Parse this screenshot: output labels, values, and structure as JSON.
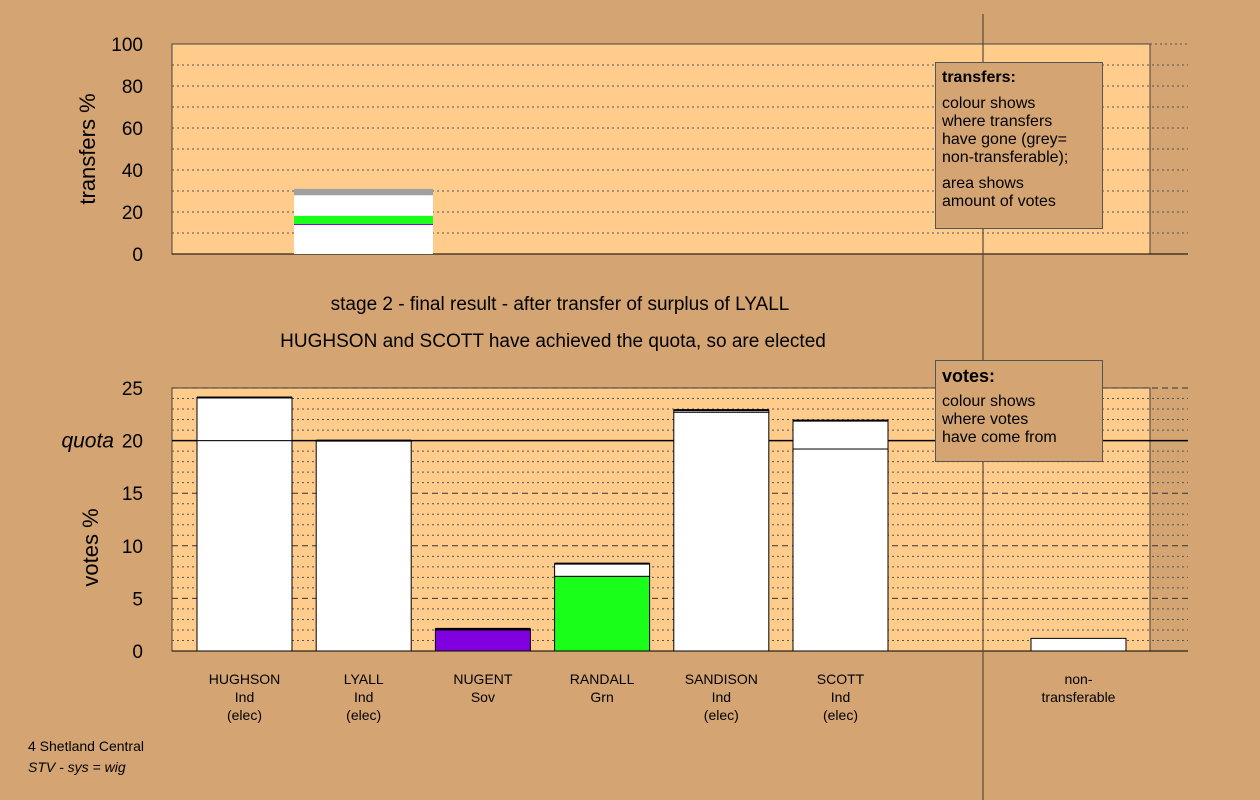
{
  "stage_title": "stage 2 - final result - after transfer of surplus of LYALL",
  "elected_text": "HUGHSON and SCOTT have achieved the quota, so are elected",
  "transfers_legend": {
    "title": "transfers:",
    "lines1": [
      "colour shows",
      "where transfers",
      "have gone (grey=",
      "non-transferable);"
    ],
    "lines2": [
      "area shows",
      "amount of votes"
    ]
  },
  "votes_legend": {
    "title": "votes:",
    "lines": [
      "colour shows",
      "where votes",
      "have come from"
    ]
  },
  "footer": {
    "line1": "4 Shetland Central",
    "line2": "STV - sys = wig"
  },
  "colors": {
    "background": "#d4a472",
    "plot_area": "#ffcc8c",
    "white": "#ffffff",
    "green": "#19ff19",
    "purple": "#8000e0",
    "grey": "#a0a0a0"
  },
  "chart_data": [
    {
      "type": "bar",
      "name": "transfers",
      "ylabel": "transfers %",
      "ylim": [
        0,
        100
      ],
      "yticks": [
        0,
        20,
        40,
        60,
        80,
        100
      ],
      "bar": {
        "candidate": "LYALL",
        "segments": [
          {
            "color": "white",
            "from": 0,
            "to": 14
          },
          {
            "color": "purple",
            "from": 14,
            "to": 14.3
          },
          {
            "color": "green",
            "from": 14.3,
            "to": 18.2
          },
          {
            "color": "white",
            "from": 18.2,
            "to": 28
          },
          {
            "color": "grey",
            "from": 28,
            "to": 31
          }
        ]
      }
    },
    {
      "type": "bar",
      "name": "votes",
      "ylabel": "votes %",
      "ylim": [
        0,
        25
      ],
      "yticks": [
        0,
        5,
        10,
        15,
        20,
        25
      ],
      "quota": 20,
      "quota_label": "quota",
      "categories": [
        {
          "name": "HUGHSON",
          "party": "Ind",
          "status": "(elec)",
          "total": 24.1,
          "segments": [
            {
              "color": "white",
              "from": 0,
              "to": 20
            },
            {
              "color": "white",
              "from": 20,
              "to": 24.1
            }
          ]
        },
        {
          "name": "LYALL",
          "party": "Ind",
          "status": "(elec)",
          "total": 20,
          "segments": [
            {
              "color": "white",
              "from": 0,
              "to": 20
            }
          ]
        },
        {
          "name": "NUGENT",
          "party": "Sov",
          "status": "",
          "total": 2.1,
          "segments": [
            {
              "color": "purple",
              "from": 0,
              "to": 2.0
            },
            {
              "color": "white",
              "from": 2.0,
              "to": 2.1
            }
          ]
        },
        {
          "name": "RANDALL",
          "party": "Grn",
          "status": "",
          "total": 8.3,
          "segments": [
            {
              "color": "green",
              "from": 0,
              "to": 7.1
            },
            {
              "color": "white",
              "from": 7.1,
              "to": 8.3
            }
          ]
        },
        {
          "name": "SANDISON",
          "party": "Ind",
          "status": "(elec)",
          "total": 22.9,
          "segments": [
            {
              "color": "white",
              "from": 0,
              "to": 22.7
            },
            {
              "color": "white",
              "from": 22.7,
              "to": 22.9
            }
          ]
        },
        {
          "name": "SCOTT",
          "party": "Ind",
          "status": "(elec)",
          "total": 21.9,
          "segments": [
            {
              "color": "white",
              "from": 0,
              "to": 19.2
            },
            {
              "color": "white",
              "from": 19.2,
              "to": 21.9
            }
          ]
        }
      ],
      "nontransferable": {
        "label1": "non-",
        "label2": "transferable",
        "total": 1.2
      }
    }
  ]
}
